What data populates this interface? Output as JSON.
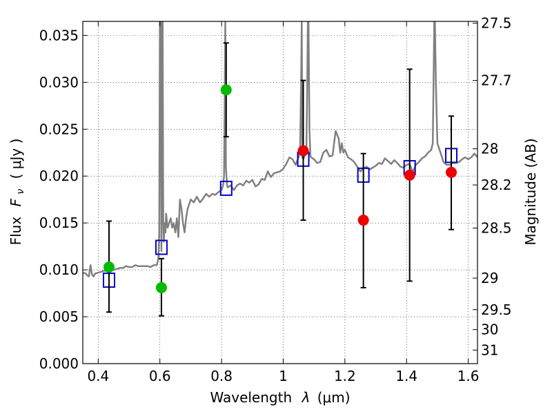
{
  "chart_data": {
    "type": "scatter",
    "xlabel_text": "Wavelength",
    "xlabel_symbol": "λ",
    "xlabel_unit": "(μm)",
    "ylabel_text": "Flux",
    "ylabel_symbol": "F",
    "ylabel_subscript": "ν",
    "ylabel_unit": "( μJy )",
    "y2label": "Magnitude (AB)",
    "xlim": [
      0.35,
      1.63
    ],
    "ylim": [
      0.0,
      0.0365
    ],
    "x_ticks": [
      0.4,
      0.6,
      0.8,
      1.0,
      1.2,
      1.4,
      1.6
    ],
    "x_tick_labels": [
      "0.4",
      "0.6",
      "0.8",
      "1",
      "1.2",
      "1.4",
      "1.6"
    ],
    "y_ticks": [
      0.0,
      0.005,
      0.01,
      0.015,
      0.02,
      0.025,
      0.03,
      0.035
    ],
    "y_tick_labels": [
      "0.000",
      "0.005",
      "0.010",
      "0.015",
      "0.020",
      "0.025",
      "0.030",
      "0.035"
    ],
    "mag_ticks": [
      27.5,
      27.7,
      28.0,
      28.2,
      28.5,
      29.0,
      29.5,
      30.0,
      31.0
    ],
    "mag_tick_labels": [
      "27.5",
      "27.7",
      "28",
      "28.2",
      "28.5",
      "29",
      "29.5",
      "30",
      "31"
    ],
    "grid": true,
    "colors": {
      "spectrum": "#808080",
      "model_box": "#0000cc",
      "obs_green": "#00bb00",
      "obs_red": "#ee0000",
      "errorbar": "#000000"
    },
    "spectrum": {
      "name": "spectrum",
      "x": [
        0.35,
        0.36,
        0.365,
        0.37,
        0.375,
        0.38,
        0.385,
        0.39,
        0.4,
        0.41,
        0.42,
        0.43,
        0.44,
        0.45,
        0.46,
        0.47,
        0.48,
        0.49,
        0.5,
        0.51,
        0.52,
        0.53,
        0.54,
        0.55,
        0.56,
        0.57,
        0.58,
        0.59,
        0.595,
        0.598,
        0.6,
        0.602,
        0.605,
        0.607,
        0.609,
        0.611,
        0.613,
        0.615,
        0.618,
        0.62,
        0.625,
        0.63,
        0.635,
        0.64,
        0.645,
        0.65,
        0.655,
        0.66,
        0.665,
        0.67,
        0.675,
        0.68,
        0.685,
        0.69,
        0.7,
        0.71,
        0.72,
        0.73,
        0.74,
        0.75,
        0.76,
        0.77,
        0.78,
        0.79,
        0.8,
        0.805,
        0.808,
        0.81,
        0.812,
        0.814,
        0.816,
        0.818,
        0.82,
        0.83,
        0.84,
        0.85,
        0.86,
        0.87,
        0.88,
        0.89,
        0.9,
        0.91,
        0.92,
        0.93,
        0.94,
        0.95,
        0.96,
        0.97,
        0.98,
        0.99,
        1.0,
        1.01,
        1.02,
        1.03,
        1.04,
        1.05,
        1.055,
        1.058,
        1.06,
        1.062,
        1.065,
        1.07,
        1.075,
        1.078,
        1.08,
        1.082,
        1.085,
        1.088,
        1.09,
        1.1,
        1.11,
        1.12,
        1.13,
        1.14,
        1.15,
        1.16,
        1.17,
        1.18,
        1.185,
        1.19,
        1.195,
        1.2,
        1.21,
        1.22,
        1.23,
        1.24,
        1.25,
        1.26,
        1.27,
        1.28,
        1.29,
        1.3,
        1.31,
        1.32,
        1.33,
        1.34,
        1.35,
        1.36,
        1.37,
        1.38,
        1.39,
        1.4,
        1.41,
        1.42,
        1.43,
        1.44,
        1.45,
        1.46,
        1.47,
        1.48,
        1.485,
        1.488,
        1.49,
        1.492,
        1.495,
        1.5,
        1.51,
        1.52,
        1.53,
        1.54,
        1.55,
        1.56,
        1.57,
        1.58,
        1.59,
        1.6,
        1.61,
        1.62,
        1.63
      ],
      "y": [
        0.0097,
        0.0096,
        0.0094,
        0.0093,
        0.0105,
        0.0095,
        0.0093,
        0.0096,
        0.0097,
        0.0098,
        0.0099,
        0.0099,
        0.01,
        0.01,
        0.0101,
        0.0102,
        0.0102,
        0.0104,
        0.0103,
        0.0103,
        0.0105,
        0.0104,
        0.0104,
        0.0104,
        0.0104,
        0.0103,
        0.0105,
        0.0105,
        0.0112,
        0.014,
        0.0365,
        0.0365,
        0.012,
        0.0365,
        0.0365,
        0.015,
        0.013,
        0.015,
        0.014,
        0.016,
        0.0145,
        0.015,
        0.0155,
        0.0145,
        0.015,
        0.014,
        0.0155,
        0.0135,
        0.0175,
        0.0165,
        0.015,
        0.014,
        0.0155,
        0.0165,
        0.0175,
        0.0172,
        0.0178,
        0.0172,
        0.0176,
        0.0181,
        0.0178,
        0.0181,
        0.018,
        0.0183,
        0.0185,
        0.019,
        0.02,
        0.0275,
        0.0365,
        0.021,
        0.02,
        0.019,
        0.0188,
        0.019,
        0.0185,
        0.019,
        0.0192,
        0.019,
        0.0195,
        0.0193,
        0.0196,
        0.0189,
        0.0191,
        0.0197,
        0.0196,
        0.0205,
        0.0199,
        0.0203,
        0.0204,
        0.0205,
        0.0208,
        0.0213,
        0.022,
        0.0218,
        0.0212,
        0.022,
        0.023,
        0.03,
        0.0365,
        0.022,
        0.0218,
        0.0222,
        0.0225,
        0.03,
        0.0365,
        0.0365,
        0.025,
        0.0222,
        0.022,
        0.0218,
        0.0214,
        0.0215,
        0.0225,
        0.0228,
        0.0221,
        0.0222,
        0.0248,
        0.024,
        0.0225,
        0.0235,
        0.0225,
        0.0228,
        0.022,
        0.0218,
        0.0215,
        0.021,
        0.0205,
        0.0208,
        0.021,
        0.0207,
        0.0209,
        0.0211,
        0.0214,
        0.0213,
        0.0219,
        0.0216,
        0.0213,
        0.0217,
        0.0214,
        0.021,
        0.0209,
        0.0212,
        0.0213,
        0.0204,
        0.0212,
        0.0215,
        0.0219,
        0.0221,
        0.0225,
        0.0228,
        0.0235,
        0.031,
        0.0365,
        0.0365,
        0.03,
        0.0235,
        0.0225,
        0.0215,
        0.0212,
        0.0212,
        0.0214,
        0.0214,
        0.0215,
        0.0218,
        0.022,
        0.0218,
        0.022,
        0.0224,
        0.022
      ]
    },
    "model_boxes": {
      "name": "model",
      "x": [
        0.435,
        0.605,
        0.815,
        1.065,
        1.26,
        1.41,
        1.545
      ],
      "y": [
        0.0089,
        0.0124,
        0.0187,
        0.0218,
        0.0201,
        0.0209,
        0.0222
      ]
    },
    "observations": [
      {
        "x": 0.435,
        "y": 0.0103,
        "err_low": 0.0055,
        "err_high": 0.0152,
        "color": "green"
      },
      {
        "x": 0.605,
        "y": 0.0081,
        "err_low": 0.0051,
        "err_high": 0.0112,
        "color": "green"
      },
      {
        "x": 0.815,
        "y": 0.0292,
        "err_low": 0.0242,
        "err_high": 0.0342,
        "color": "green"
      },
      {
        "x": 1.065,
        "y": 0.0227,
        "err_low": 0.0153,
        "err_high": 0.0302,
        "color": "red"
      },
      {
        "x": 1.26,
        "y": 0.0153,
        "err_low": 0.0081,
        "err_high": 0.0224,
        "color": "red"
      },
      {
        "x": 1.41,
        "y": 0.0201,
        "err_low": 0.0088,
        "err_high": 0.0314,
        "color": "red"
      },
      {
        "x": 1.545,
        "y": 0.0204,
        "err_low": 0.0143,
        "err_high": 0.0264,
        "color": "red"
      }
    ]
  }
}
